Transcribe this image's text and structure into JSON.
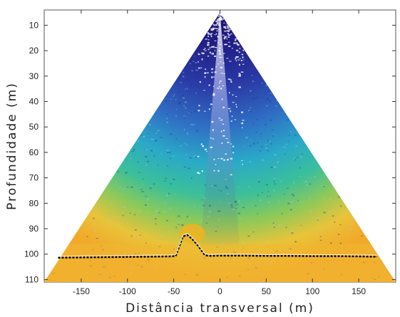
{
  "chart_data": {
    "type": "heatmap",
    "title": "",
    "xlabel": "Distância transversal (m)",
    "ylabel": "Profundidade (m)",
    "xlim": [
      -190,
      190
    ],
    "ylim": [
      111,
      4
    ],
    "y_inverted": true,
    "xticks": [
      -150,
      -100,
      -50,
      0,
      50,
      100,
      150
    ],
    "yticks": [
      10,
      20,
      30,
      40,
      50,
      60,
      70,
      80,
      90,
      100,
      110
    ],
    "grid": false,
    "colormap": [
      "#1b1270",
      "#2a3aa6",
      "#2f6fc4",
      "#2aa9c8",
      "#3bbf9a",
      "#8cc95a",
      "#e8c43a",
      "#f2a92a"
    ],
    "beam_fan": {
      "apex": [
        0,
        5
      ],
      "left_edge_end": [
        -190,
        111
      ],
      "right_edge_end": [
        190,
        111
      ]
    },
    "seabed_series": {
      "name": "",
      "color": "#000000",
      "points": [
        [
          -175,
          101.4
        ],
        [
          -150,
          101.3
        ],
        [
          -125,
          101.2
        ],
        [
          -100,
          101.1
        ],
        [
          -75,
          101.0
        ],
        [
          -55,
          100.9
        ],
        [
          -48,
          100.8
        ],
        [
          -40,
          93.0
        ],
        [
          -35,
          92.5
        ],
        [
          -30,
          94.0
        ],
        [
          -24,
          96.5
        ],
        [
          -20,
          98.5
        ],
        [
          -16,
          100.5
        ],
        [
          -10,
          100.7
        ],
        [
          0,
          100.6
        ],
        [
          25,
          100.6
        ],
        [
          50,
          100.7
        ],
        [
          75,
          100.7
        ],
        [
          100,
          100.8
        ],
        [
          125,
          100.8
        ],
        [
          150,
          100.9
        ],
        [
          170,
          101.0
        ]
      ]
    }
  }
}
